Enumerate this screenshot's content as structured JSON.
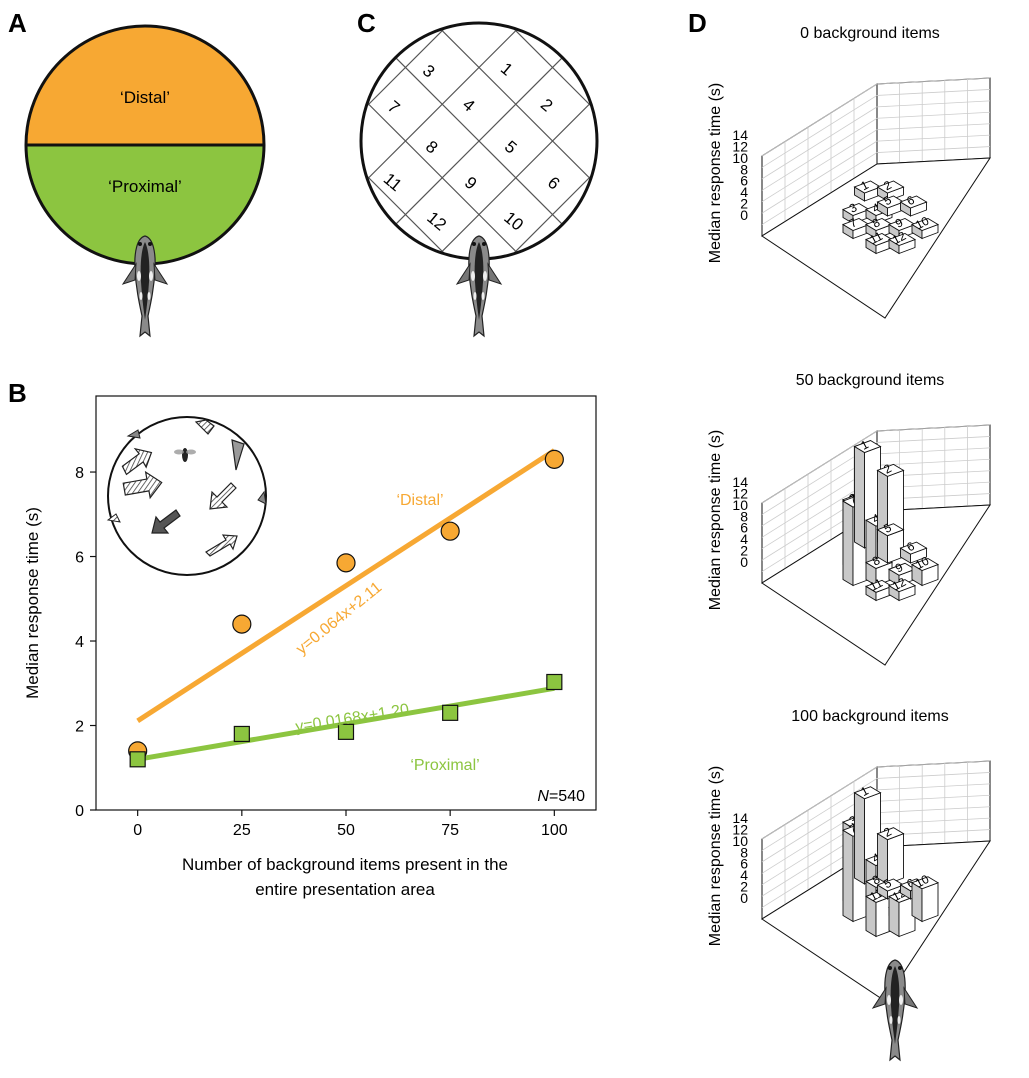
{
  "panels": {
    "a": "A",
    "b": "B",
    "c": "C",
    "d": "D"
  },
  "panel_a": {
    "distal_label": "‘Distal’",
    "proximal_label": "‘Proximal’"
  },
  "panel_c": {
    "sectors": [
      "3",
      "1",
      "7",
      "4",
      "2",
      "8",
      "5",
      "11",
      "9",
      "6",
      "12",
      "10"
    ]
  },
  "colors": {
    "distal": "#f7a833",
    "proximal": "#8cc540",
    "bar_front": "#ffffff",
    "bar_side": "#c8c8c8"
  },
  "chart_data": [
    {
      "type": "scatter",
      "panel": "B",
      "xlabel_line1": "Number of background items present in the",
      "xlabel_line2": "entire presentation area",
      "ylabel": "Median response time (s)",
      "xlim": [
        -10,
        110
      ],
      "ylim": [
        0,
        9.8
      ],
      "xticks": [
        "0",
        "25",
        "50",
        "75",
        "100"
      ],
      "yticks": [
        "0",
        "2",
        "4",
        "6",
        "8"
      ],
      "series": [
        {
          "name": "‘Distal’",
          "marker": "circle",
          "x": [
            0,
            25,
            50,
            75,
            100
          ],
          "y": [
            1.4,
            4.4,
            5.85,
            6.6,
            8.3
          ],
          "fit_label": "y=0.064x+2.11",
          "fit": {
            "slope": 0.064,
            "intercept": 2.11
          }
        },
        {
          "name": "‘Proximal’",
          "marker": "square",
          "x": [
            0,
            25,
            50,
            75,
            100
          ],
          "y": [
            1.2,
            1.8,
            1.85,
            2.3,
            3.03
          ],
          "fit_label": "y=0.0168x+1.20",
          "fit": {
            "slope": 0.0168,
            "intercept": 1.2
          }
        }
      ],
      "annotation_n_italic": "N",
      "annotation_n_value": "=540"
    },
    {
      "type": "bar3d",
      "panel": "D",
      "title": "0 background items",
      "zlabel": "Median response time (s)",
      "zticks": [
        "0",
        "2",
        "4",
        "6",
        "8",
        "10",
        "12",
        "14"
      ],
      "zlim": [
        0,
        14
      ],
      "bars": [
        {
          "label": "3",
          "value": 0.9
        },
        {
          "label": "1",
          "value": 1.0
        },
        {
          "label": "7",
          "value": 1.0
        },
        {
          "label": "4",
          "value": 0.9
        },
        {
          "label": "2",
          "value": 1.1
        },
        {
          "label": "8",
          "value": 1.0
        },
        {
          "label": "5",
          "value": 0.9
        },
        {
          "label": "11",
          "value": 1.0
        },
        {
          "label": "9",
          "value": 1.0
        },
        {
          "label": "6",
          "value": 1.0
        },
        {
          "label": "12",
          "value": 1.0
        },
        {
          "label": "10",
          "value": 1.0
        }
      ]
    },
    {
      "type": "bar3d",
      "panel": "D",
      "title": "50 background items",
      "zlabel": "Median response time (s)",
      "zticks": [
        "0",
        "2",
        "4",
        "6",
        "8",
        "10",
        "12",
        "14"
      ],
      "zlim": [
        0,
        14
      ],
      "bars": [
        {
          "label": "3",
          "value": 9.5
        },
        {
          "label": "1",
          "value": 14.0
        },
        {
          "label": "7",
          "value": 11.5
        },
        {
          "label": "4",
          "value": 6.5
        },
        {
          "label": "2",
          "value": 10.5
        },
        {
          "label": "8",
          "value": 2.5
        },
        {
          "label": "5",
          "value": 4.0
        },
        {
          "label": "11",
          "value": 1.2
        },
        {
          "label": "9",
          "value": 1.5
        },
        {
          "label": "6",
          "value": 1.3
        },
        {
          "label": "12",
          "value": 1.3
        },
        {
          "label": "10",
          "value": 2.2
        }
      ]
    },
    {
      "type": "bar3d",
      "panel": "D",
      "title": "100 background items",
      "zlabel": "Median response time (s)",
      "zticks": [
        "0",
        "2",
        "4",
        "6",
        "8",
        "10",
        "12",
        "14"
      ],
      "zlim": [
        0,
        14
      ],
      "bars": [
        {
          "label": "3",
          "value": 11.5
        },
        {
          "label": "1",
          "value": 12.5
        },
        {
          "label": "7",
          "value": 12.5
        },
        {
          "label": "4",
          "value": 6.0
        },
        {
          "label": "2",
          "value": 6.5
        },
        {
          "label": "8",
          "value": 5.0
        },
        {
          "label": "5",
          "value": 1.0
        },
        {
          "label": "11",
          "value": 5.0
        },
        {
          "label": "9",
          "value": 1.2
        },
        {
          "label": "6",
          "value": 1.2
        },
        {
          "label": "12",
          "value": 5.0
        },
        {
          "label": "10",
          "value": 4.8
        }
      ]
    }
  ]
}
